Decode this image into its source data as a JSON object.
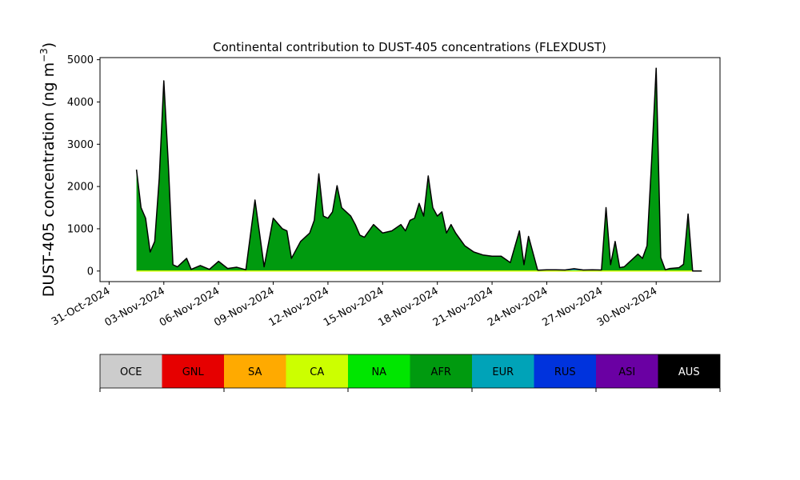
{
  "chart_data": {
    "type": "area",
    "stacked": true,
    "title": "Continental contribution to DUST-405 concentrations (FLEXDUST)",
    "ylabel": "DUST-405 concentration (ng m",
    "ylabel_unit_exponent": "−3",
    "ylabel_close": ")",
    "ylim": [
      -250,
      5050
    ],
    "y_ticks": [
      0,
      1000,
      2000,
      3000,
      4000,
      5000
    ],
    "xlim": [
      "2024-10-30T12:00",
      "2024-12-03T12:00"
    ],
    "x_ticks": [
      "2024-10-31",
      "2024-11-03",
      "2024-11-06",
      "2024-11-09",
      "2024-11-12",
      "2024-11-15",
      "2024-11-18",
      "2024-11-21",
      "2024-11-24",
      "2024-11-27",
      "2024-11-30"
    ],
    "x_tick_labels": [
      "31-Oct-2024",
      "03-Nov-2024",
      "06-Nov-2024",
      "09-Nov-2024",
      "12-Nov-2024",
      "15-Nov-2024",
      "18-Nov-2024",
      "21-Nov-2024",
      "24-Nov-2024",
      "27-Nov-2024",
      "30-Nov-2024"
    ],
    "total_line_color": "#000000",
    "legend": {
      "position": "below",
      "entries": [
        {
          "name": "OCE",
          "color": "#cccccc",
          "text_color": "#000000"
        },
        {
          "name": "GNL",
          "color": "#e60000",
          "text_color": "#000000"
        },
        {
          "name": "SA",
          "color": "#ffaa00",
          "text_color": "#000000"
        },
        {
          "name": "CA",
          "color": "#ccff00",
          "text_color": "#000000"
        },
        {
          "name": "NA",
          "color": "#00e600",
          "text_color": "#000000"
        },
        {
          "name": "AFR",
          "color": "#009a0f",
          "text_color": "#000000"
        },
        {
          "name": "EUR",
          "color": "#00a3b8",
          "text_color": "#000000"
        },
        {
          "name": "RUS",
          "color": "#0033dd",
          "text_color": "#000000"
        },
        {
          "name": "ASI",
          "color": "#6a00a3",
          "text_color": "#000000"
        },
        {
          "name": "AUS",
          "color": "#000000",
          "text_color": "#ffffff"
        }
      ]
    },
    "series_values": {
      "dates": [
        "2024-11-01T12:00",
        "2024-11-01T18:00",
        "2024-11-02T00:00",
        "2024-11-02T06:00",
        "2024-11-02T12:00",
        "2024-11-02T18:00",
        "2024-11-03T00:00",
        "2024-11-03T06:00",
        "2024-11-03T12:00",
        "2024-11-03T18:00",
        "2024-11-04T00:00",
        "2024-11-04T06:00",
        "2024-11-04T12:00",
        "2024-11-05T00:00",
        "2024-11-05T12:00",
        "2024-11-06T00:00",
        "2024-11-06T12:00",
        "2024-11-07T00:00",
        "2024-11-07T12:00",
        "2024-11-08T00:00",
        "2024-11-08T12:00",
        "2024-11-09T00:00",
        "2024-11-09T12:00",
        "2024-11-09T18:00",
        "2024-11-10T00:00",
        "2024-11-10T12:00",
        "2024-11-11T00:00",
        "2024-11-11T06:00",
        "2024-11-11T12:00",
        "2024-11-11T18:00",
        "2024-11-12T00:00",
        "2024-11-12T06:00",
        "2024-11-12T12:00",
        "2024-11-12T18:00",
        "2024-11-13T00:00",
        "2024-11-13T06:00",
        "2024-11-13T12:00",
        "2024-11-13T18:00",
        "2024-11-14T00:00",
        "2024-11-14T12:00",
        "2024-11-15T00:00",
        "2024-11-15T12:00",
        "2024-11-16T00:00",
        "2024-11-16T06:00",
        "2024-11-16T12:00",
        "2024-11-16T18:00",
        "2024-11-17T00:00",
        "2024-11-17T06:00",
        "2024-11-17T12:00",
        "2024-11-17T18:00",
        "2024-11-18T00:00",
        "2024-11-18T06:00",
        "2024-11-18T12:00",
        "2024-11-18T18:00",
        "2024-11-19T00:00",
        "2024-11-19T12:00",
        "2024-11-20T00:00",
        "2024-11-20T12:00",
        "2024-11-21T00:00",
        "2024-11-21T12:00",
        "2024-11-22T00:00",
        "2024-11-22T12:00",
        "2024-11-22T18:00",
        "2024-11-23T00:00",
        "2024-11-23T12:00",
        "2024-11-24T00:00",
        "2024-11-24T12:00",
        "2024-11-25T00:00",
        "2024-11-25T12:00",
        "2024-11-26T00:00",
        "2024-11-26T12:00",
        "2024-11-27T00:00",
        "2024-11-27T06:00",
        "2024-11-27T12:00",
        "2024-11-27T18:00",
        "2024-11-28T00:00",
        "2024-11-28T06:00",
        "2024-11-28T12:00",
        "2024-11-28T18:00",
        "2024-11-29T00:00",
        "2024-11-29T06:00",
        "2024-11-29T12:00",
        "2024-11-29T18:00",
        "2024-11-30T00:00",
        "2024-11-30T06:00",
        "2024-11-30T12:00",
        "2024-11-30T18:00",
        "2024-12-01T00:00",
        "2024-12-01T06:00",
        "2024-12-01T12:00",
        "2024-12-01T18:00",
        "2024-12-02T00:00",
        "2024-12-02T06:00",
        "2024-12-02T12:00"
      ],
      "AFR": [
        2400,
        1500,
        1250,
        450,
        700,
        2200,
        4500,
        2500,
        150,
        100,
        200,
        300,
        40,
        130,
        40,
        230,
        60,
        90,
        30,
        1680,
        100,
        1250,
        1000,
        950,
        300,
        700,
        900,
        1200,
        2300,
        1300,
        1250,
        1400,
        2020,
        1500,
        1400,
        1300,
        1100,
        850,
        800,
        1100,
        900,
        950,
        1100,
        950,
        1200,
        1250,
        1600,
        1300,
        2250,
        1500,
        1300,
        1400,
        900,
        1100,
        900,
        600,
        450,
        380,
        350,
        350,
        200,
        950,
        150,
        820,
        0,
        0,
        0,
        0,
        20,
        0,
        0,
        0,
        1500,
        150,
        700,
        80,
        100,
        200,
        300,
        400,
        300,
        600,
        2500,
        4600,
        300,
        20,
        50,
        60,
        70,
        150,
        1350,
        0,
        0,
        0
      ],
      "EUR": [
        0,
        0,
        0,
        0,
        0,
        0,
        0,
        0,
        0,
        0,
        0,
        0,
        0,
        0,
        0,
        0,
        0,
        0,
        0,
        0,
        0,
        0,
        0,
        0,
        0,
        0,
        0,
        0,
        0,
        0,
        0,
        0,
        0,
        0,
        0,
        0,
        0,
        0,
        0,
        0,
        0,
        0,
        0,
        0,
        0,
        0,
        0,
        0,
        0,
        0,
        0,
        0,
        0,
        0,
        0,
        0,
        0,
        0,
        0,
        0,
        0,
        0,
        0,
        0,
        10,
        20,
        20,
        15,
        25,
        15,
        20,
        15,
        0,
        0,
        0,
        0,
        0,
        0,
        0,
        0,
        0,
        0,
        100,
        200,
        20,
        10,
        10,
        10,
        10,
        10,
        0,
        0,
        0,
        0
      ],
      "RUS": [
        0,
        0,
        0,
        0,
        0,
        0,
        0,
        0,
        0,
        0,
        0,
        0,
        0,
        0,
        0,
        0,
        0,
        0,
        0,
        0,
        0,
        0,
        0,
        0,
        0,
        0,
        0,
        0,
        0,
        0,
        0,
        0,
        0,
        0,
        0,
        0,
        0,
        0,
        0,
        0,
        0,
        0,
        0,
        0,
        0,
        0,
        0,
        0,
        0,
        0,
        0,
        0,
        0,
        0,
        0,
        0,
        0,
        0,
        0,
        0,
        0,
        0,
        0,
        0,
        10,
        10,
        10,
        10,
        10,
        10,
        10,
        10,
        0,
        0,
        0,
        0,
        0,
        0,
        0,
        0,
        0,
        0,
        0,
        0,
        0,
        0,
        0,
        0,
        0,
        0,
        0,
        0,
        0,
        0
      ],
      "ASI": [
        0,
        0,
        0,
        0,
        0,
        0,
        0,
        0,
        0,
        0,
        0,
        0,
        0,
        0,
        0,
        0,
        0,
        0,
        0,
        0,
        0,
        0,
        0,
        0,
        0,
        0,
        0,
        0,
        0,
        0,
        0,
        0,
        0,
        0,
        0,
        0,
        0,
        0,
        0,
        0,
        0,
        0,
        0,
        0,
        0,
        0,
        0,
        0,
        0,
        0,
        0,
        0,
        0,
        0,
        0,
        0,
        0,
        0,
        0,
        0,
        0,
        0,
        0,
        0,
        0,
        0,
        0,
        0,
        0,
        0,
        0,
        0,
        0,
        0,
        0,
        0,
        0,
        0,
        0,
        0,
        0,
        0,
        0,
        0,
        0,
        0,
        0,
        0,
        0,
        0,
        0,
        0,
        0,
        0
      ]
    }
  }
}
